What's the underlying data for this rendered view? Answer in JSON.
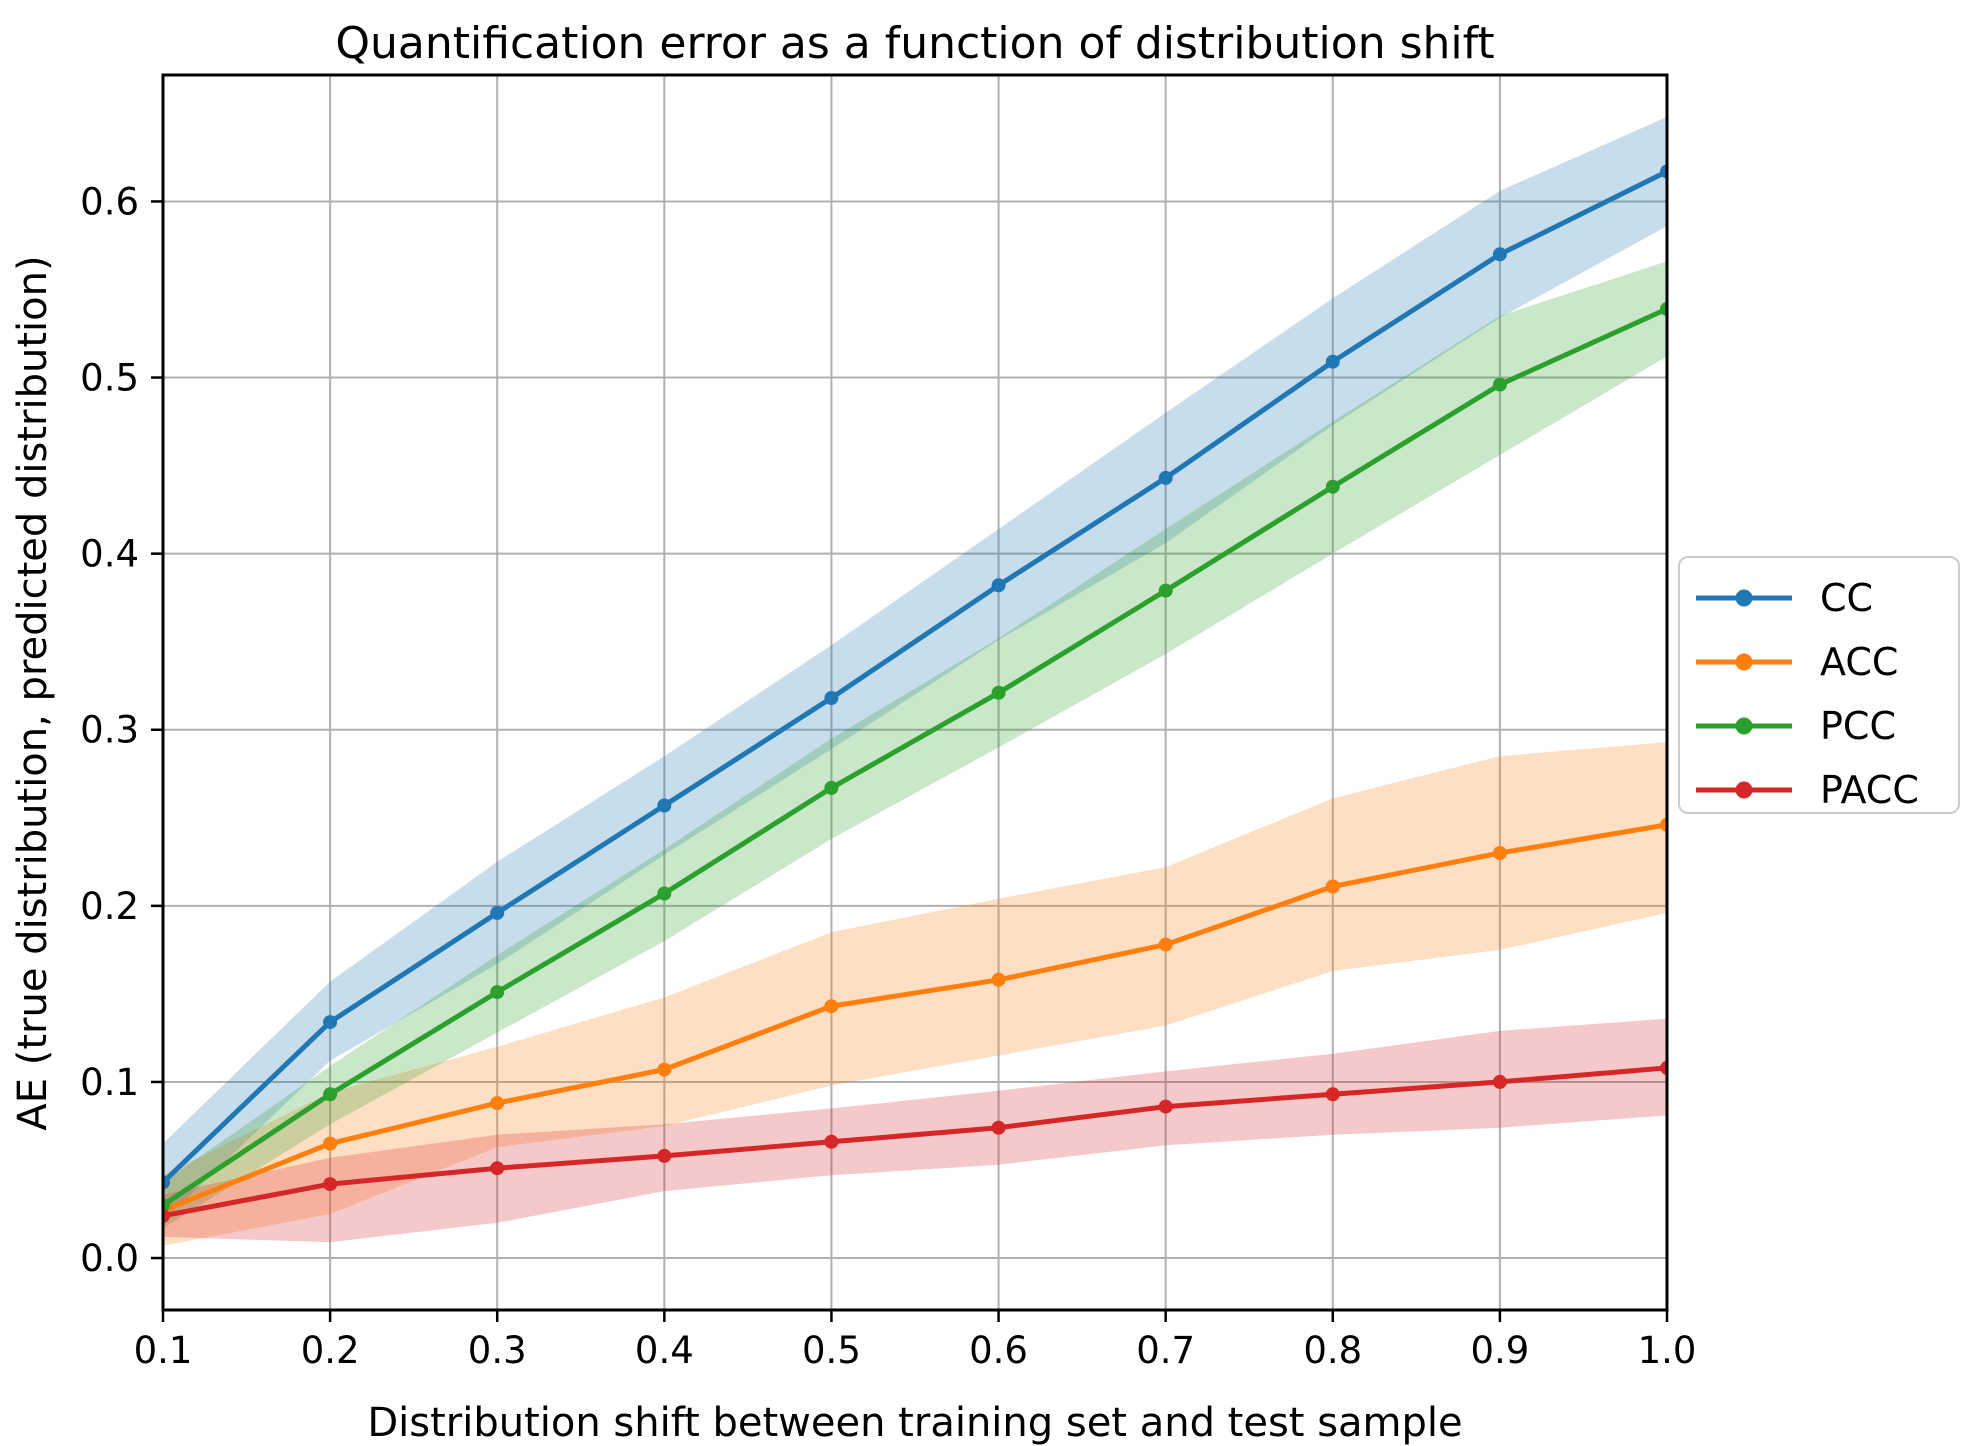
{
  "chart_data": {
    "type": "line",
    "title": "Quantification error as a function of distribution shift",
    "xlabel": "Distribution shift between training set and test sample",
    "ylabel": "AE (true distribution, predicted distribution)",
    "grid": true,
    "legend_position": "right-outside",
    "marker": "circle",
    "band_alpha": 0.25,
    "xlim": [
      0.1,
      1.0
    ],
    "ylim": [
      -0.0295,
      0.6718
    ],
    "x": [
      0.1,
      0.2,
      0.3,
      0.4,
      0.5,
      0.6,
      0.7,
      0.8,
      0.9,
      1.0
    ],
    "x_tick_labels": [
      "0.1",
      "0.2",
      "0.3",
      "0.4",
      "0.5",
      "0.6",
      "0.7",
      "0.8",
      "0.9",
      "1.0"
    ],
    "y_ticks": [
      0.0,
      0.1,
      0.2,
      0.3,
      0.4,
      0.5,
      0.6
    ],
    "y_tick_labels": [
      "0.0",
      "0.1",
      "0.2",
      "0.3",
      "0.4",
      "0.5",
      "0.6"
    ],
    "series": [
      {
        "name": "CC",
        "color": "#1f77b4",
        "values": [
          0.043,
          0.134,
          0.196,
          0.257,
          0.318,
          0.382,
          0.443,
          0.509,
          0.57,
          0.617
        ],
        "upper": [
          0.065,
          0.157,
          0.225,
          0.285,
          0.348,
          0.414,
          0.48,
          0.545,
          0.606,
          0.648
        ],
        "lower": [
          0.021,
          0.112,
          0.167,
          0.229,
          0.289,
          0.351,
          0.406,
          0.473,
          0.534,
          0.586
        ]
      },
      {
        "name": "ACC",
        "color": "#ff7f0e",
        "values": [
          0.027,
          0.065,
          0.088,
          0.107,
          0.143,
          0.158,
          0.178,
          0.211,
          0.23,
          0.246
        ],
        "upper": [
          0.047,
          0.094,
          0.12,
          0.148,
          0.185,
          0.204,
          0.222,
          0.261,
          0.285,
          0.293
        ],
        "lower": [
          0.007,
          0.025,
          0.063,
          0.075,
          0.098,
          0.115,
          0.132,
          0.163,
          0.175,
          0.196
        ]
      },
      {
        "name": "PCC",
        "color": "#2ca02c",
        "values": [
          0.03,
          0.093,
          0.151,
          0.207,
          0.267,
          0.321,
          0.379,
          0.438,
          0.496,
          0.539
        ],
        "upper": [
          0.043,
          0.109,
          0.172,
          0.232,
          0.295,
          0.352,
          0.414,
          0.475,
          0.535,
          0.566
        ],
        "lower": [
          0.017,
          0.076,
          0.128,
          0.18,
          0.238,
          0.29,
          0.343,
          0.4,
          0.456,
          0.512
        ]
      },
      {
        "name": "PACC",
        "color": "#d62728",
        "values": [
          0.024,
          0.042,
          0.051,
          0.058,
          0.066,
          0.074,
          0.086,
          0.093,
          0.1,
          0.108
        ],
        "upper": [
          0.036,
          0.057,
          0.07,
          0.076,
          0.085,
          0.095,
          0.106,
          0.116,
          0.129,
          0.136
        ],
        "lower": [
          0.012,
          0.009,
          0.02,
          0.038,
          0.047,
          0.053,
          0.064,
          0.07,
          0.074,
          0.081
        ]
      }
    ]
  }
}
